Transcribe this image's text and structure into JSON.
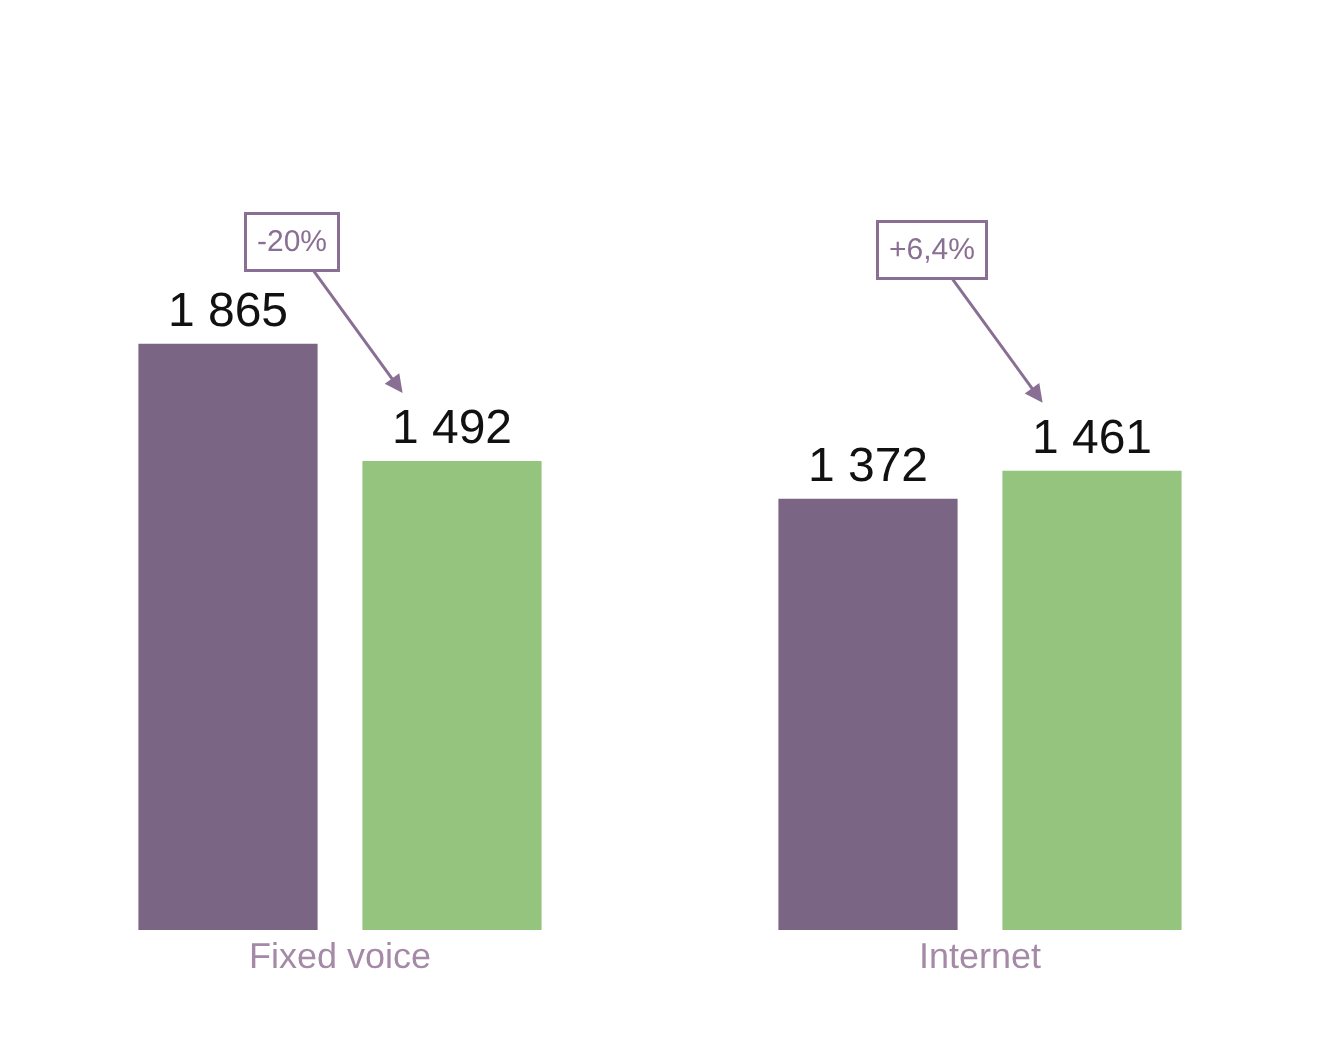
{
  "chart_data": {
    "type": "bar",
    "categories": [
      "Fixed voice",
      "Internet"
    ],
    "series": [
      {
        "color": "#7b6585",
        "values": [
          1865,
          1372
        ],
        "value_labels": [
          "1 865",
          "1 372"
        ]
      },
      {
        "color": "#95c47f",
        "values": [
          1492,
          1461
        ],
        "value_labels": [
          "1 492",
          "1 461"
        ]
      }
    ],
    "annotations": [
      "-20%",
      "+6,4%"
    ],
    "tick_labels": "x"
  }
}
